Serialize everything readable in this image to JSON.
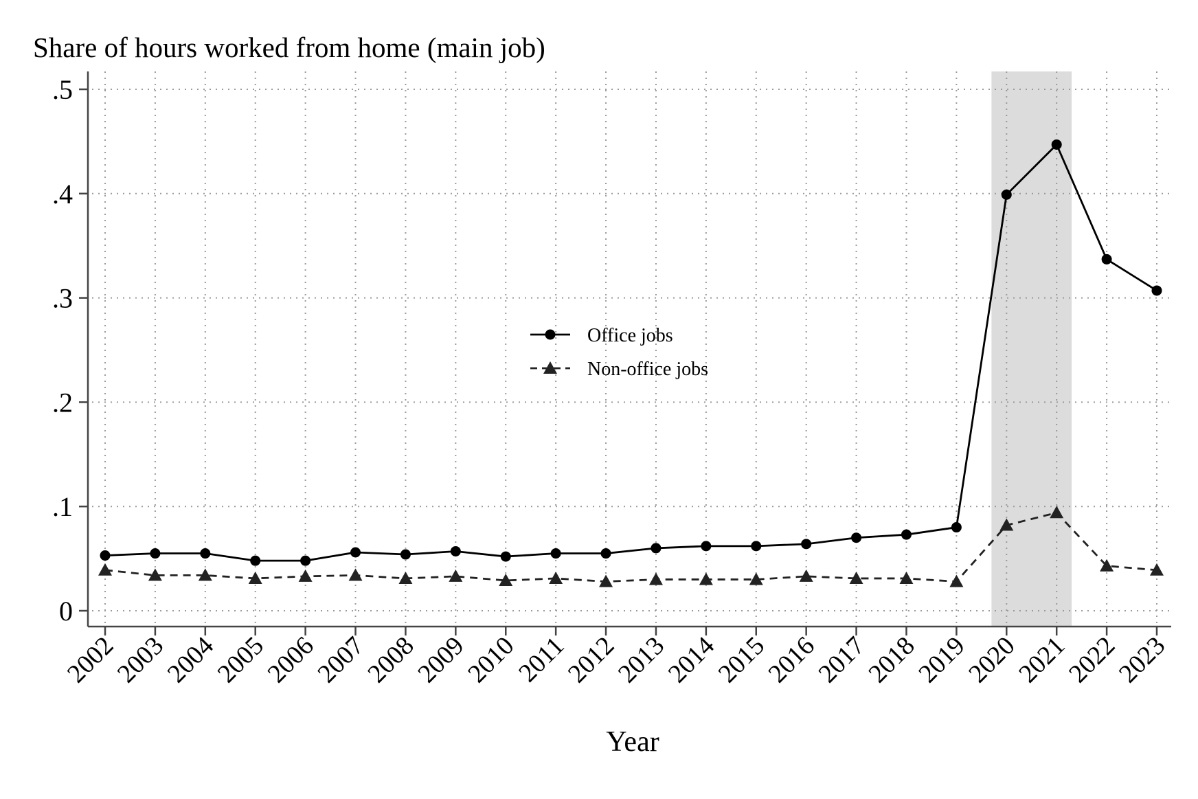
{
  "chart_data": {
    "type": "line",
    "title": "Share of hours worked from home (main job)",
    "xlabel": "Year",
    "ylabel": "",
    "x": [
      2002,
      2003,
      2004,
      2005,
      2006,
      2007,
      2008,
      2009,
      2010,
      2011,
      2012,
      2013,
      2014,
      2015,
      2016,
      2017,
      2018,
      2019,
      2020,
      2021,
      2022,
      2023
    ],
    "x_tick_labels": [
      "2002",
      "2003",
      "2004",
      "2005",
      "2006",
      "2007",
      "2008",
      "2009",
      "2010",
      "2011",
      "2012",
      "2013",
      "2014",
      "2015",
      "2016",
      "2017",
      "2018",
      "2019",
      "2020",
      "2021",
      "2022",
      "2023"
    ],
    "ylim": [
      0,
      0.5
    ],
    "y_ticks": [
      0,
      0.1,
      0.2,
      0.3,
      0.4,
      0.5
    ],
    "y_tick_labels": [
      "0",
      ".1",
      ".2",
      ".3",
      ".4",
      ".5"
    ],
    "grid": true,
    "legend_position": "center",
    "shaded_region": {
      "x_start": 2019.7,
      "x_end": 2021.3,
      "color": "#dcdcdc"
    },
    "series": [
      {
        "name": "Office jobs",
        "marker": "circle",
        "line_style": "solid",
        "color": "#000000",
        "values": [
          0.053,
          0.055,
          0.055,
          0.048,
          0.048,
          0.056,
          0.054,
          0.057,
          0.052,
          0.055,
          0.055,
          0.06,
          0.062,
          0.062,
          0.064,
          0.07,
          0.073,
          0.08,
          0.399,
          0.447,
          0.337,
          0.307
        ]
      },
      {
        "name": "Non-office jobs",
        "marker": "triangle",
        "line_style": "dashed",
        "color": "#222222",
        "values": [
          0.039,
          0.034,
          0.034,
          0.031,
          0.033,
          0.034,
          0.031,
          0.033,
          0.029,
          0.031,
          0.028,
          0.03,
          0.03,
          0.03,
          0.033,
          0.031,
          0.031,
          0.028,
          0.082,
          0.094,
          0.043,
          0.039
        ]
      }
    ]
  }
}
